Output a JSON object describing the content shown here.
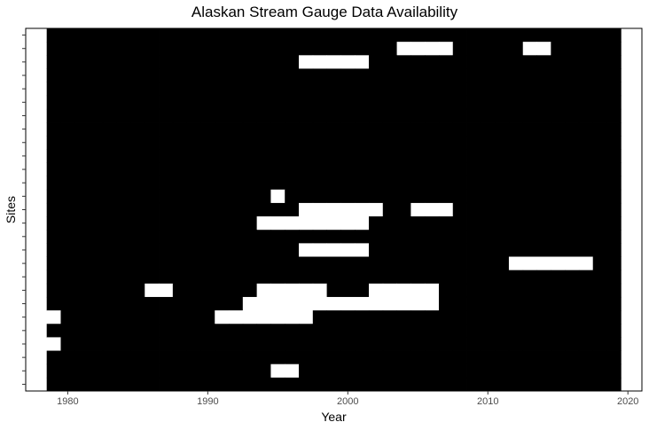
{
  "chart_data": {
    "type": "heatmap",
    "title": "Alaskan Stream Gauge Data Availability",
    "xlabel": "Year",
    "ylabel": "Sites",
    "xlim": [
      1977,
      2021
    ],
    "x_ticks": [
      1980,
      1990,
      2000,
      2010,
      2020
    ],
    "year_range": [
      1979,
      2019
    ],
    "site_count": 27,
    "grid": false,
    "legend": "none",
    "colors": {
      "available": "#000000",
      "missing": "#ffffff",
      "border": "#000000"
    },
    "note_missing_value_encoding": "cells inside year_range are available unless listed in missing",
    "missing": [
      {
        "site": 1,
        "years": [
          2004,
          2005,
          2006,
          2007
        ]
      },
      {
        "site": 1,
        "years": [
          2013,
          2014
        ]
      },
      {
        "site": 2,
        "years": [
          1997,
          1998,
          1999,
          2000,
          2001
        ]
      },
      {
        "site": 12,
        "years": [
          1995
        ]
      },
      {
        "site": 13,
        "years": [
          1997,
          1998,
          1999,
          2000,
          2001,
          2002
        ]
      },
      {
        "site": 13,
        "years": [
          2005,
          2006,
          2007
        ]
      },
      {
        "site": 14,
        "years": [
          1994,
          1995,
          1996,
          1997,
          1998,
          1999,
          2000,
          2001
        ]
      },
      {
        "site": 16,
        "years": [
          1997,
          1998,
          1999,
          2000,
          2001
        ]
      },
      {
        "site": 17,
        "years": [
          2012,
          2013,
          2014,
          2015,
          2016,
          2017
        ]
      },
      {
        "site": 19,
        "years": [
          1986,
          1987
        ]
      },
      {
        "site": 19,
        "years": [
          1994,
          1995,
          1996,
          1997,
          1998
        ]
      },
      {
        "site": 19,
        "years": [
          2002,
          2003,
          2004,
          2005,
          2006
        ]
      },
      {
        "site": 20,
        "years": [
          1993,
          1994,
          1995,
          1996,
          1997,
          1998,
          1999,
          2000,
          2001,
          2002,
          2003,
          2004,
          2005,
          2006
        ]
      },
      {
        "site": 21,
        "years": [
          1979
        ]
      },
      {
        "site": 21,
        "years": [
          1991,
          1992,
          1993,
          1994,
          1995,
          1996,
          1997
        ]
      },
      {
        "site": 23,
        "years": [
          1979
        ]
      },
      {
        "site": 25,
        "years": [
          1995,
          1996
        ]
      }
    ]
  }
}
